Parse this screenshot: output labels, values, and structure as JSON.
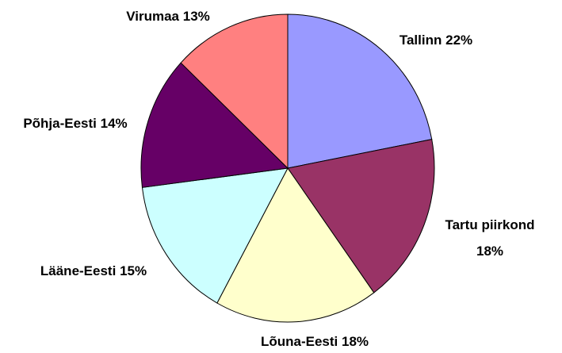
{
  "chart_data": {
    "type": "pie",
    "categories": [
      "Tallinn",
      "Tartu piirkond",
      "Lõuna-Eesti",
      "Lääne-Eesti",
      "Põhja-Eesti",
      "Virumaa"
    ],
    "values": [
      22,
      18,
      18,
      15,
      14,
      13
    ],
    "value_labels": [
      "22%",
      "18%",
      "18%",
      "15%",
      "14%",
      "13%"
    ],
    "colors": [
      "#9999ff",
      "#993366",
      "#ffffcc",
      "#ccffff",
      "#660066",
      "#ff8080"
    ]
  }
}
